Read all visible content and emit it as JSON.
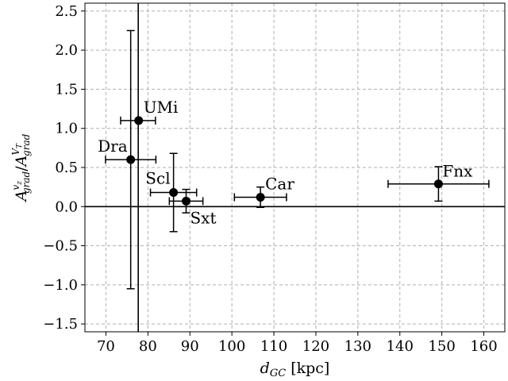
{
  "chart_data": {
    "type": "scatter",
    "title": "",
    "xlabel_main": "d",
    "xlabel_sub": "GC",
    "xlabel_unit": " [kpc]",
    "ylabel_num_main": "A",
    "ylabel_num_sub": "grad",
    "ylabel_num_sup_main": "v",
    "ylabel_num_sup_sub": "z",
    "ylabel_div": "/",
    "ylabel_den_main": "A",
    "ylabel_den_sub": "grad",
    "ylabel_den_sup_main": "V",
    "ylabel_den_sup_sub": "T",
    "xlim": [
      65,
      165
    ],
    "ylim": [
      -1.6,
      2.6
    ],
    "xticks": [
      70,
      80,
      90,
      100,
      110,
      120,
      130,
      140,
      150,
      160
    ],
    "yticks": [
      -1.5,
      -1.0,
      -0.5,
      0.0,
      0.5,
      1.0,
      1.5,
      2.0,
      2.5
    ],
    "xtick_labels": [
      "70",
      "80",
      "90",
      "100",
      "110",
      "120",
      "130",
      "140",
      "150",
      "160"
    ],
    "ytick_labels": [
      "−1.5",
      "−1.0",
      "−0.5",
      "0.0",
      "0.5",
      "1.0",
      "1.5",
      "2.0",
      "2.5"
    ],
    "grid": true,
    "reference_lines": {
      "horizontal_y": 0.0,
      "vertical_x": 77.7
    },
    "points": [
      {
        "label": "UMi",
        "x": 77.8,
        "y": 1.1,
        "x_err": [
          4.3,
          4.0
        ],
        "y_err": [
          0.0,
          0.0
        ]
      },
      {
        "label": "Dra",
        "x": 75.9,
        "y": 0.6,
        "x_err": [
          6.0,
          6.0
        ],
        "y_err": [
          1.65,
          1.65
        ]
      },
      {
        "label": "Scl",
        "x": 86.1,
        "y": 0.18,
        "x_err": [
          5.5,
          5.5
        ],
        "y_err": [
          0.5,
          0.5
        ]
      },
      {
        "label": "Sxt",
        "x": 89.1,
        "y": 0.07,
        "x_err": [
          4.0,
          4.0
        ],
        "y_err": [
          0.15,
          0.15
        ]
      },
      {
        "label": "Car",
        "x": 106.8,
        "y": 0.12,
        "x_err": [
          6.2,
          6.2
        ],
        "y_err": [
          0.13,
          0.13
        ]
      },
      {
        "label": "Fnx",
        "x": 149.2,
        "y": 0.29,
        "x_err": [
          12.0,
          12.0
        ],
        "y_err": [
          0.22,
          0.22
        ]
      }
    ]
  }
}
